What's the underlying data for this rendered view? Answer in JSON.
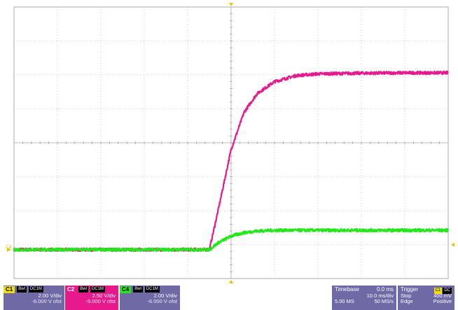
{
  "colors": {
    "grid": "#a8a8a8",
    "C1": "#f0e000",
    "C2": "#e8198c",
    "C4": "#22e81a",
    "panel": "#6f6aa6",
    "axis_marker": "#e6c600"
  },
  "chart_data": {
    "type": "line",
    "title": "",
    "xlabel": "",
    "ylabel": "",
    "grid": true,
    "divisions": {
      "x": 10,
      "y": 8
    },
    "xlim_div": [
      -5,
      5
    ],
    "ylim_div": [
      -4,
      4
    ],
    "ground_marker_label": "C4",
    "series": [
      {
        "name": "C2",
        "color": "#e8198c",
        "x_div": [
          -5,
          -0.5,
          -0.3,
          0,
          0.3,
          0.6,
          1.0,
          1.5,
          2.0,
          3.0,
          4.0,
          5.0
        ],
        "y_div": [
          -3.15,
          -3.15,
          -2.0,
          -0.2,
          0.9,
          1.45,
          1.8,
          1.98,
          2.03,
          2.05,
          2.06,
          2.06
        ]
      },
      {
        "name": "C4",
        "color": "#22e81a",
        "x_div": [
          -5,
          -0.5,
          -0.3,
          0,
          0.3,
          0.6,
          1.0,
          2.0,
          3.0,
          4.0,
          5.0
        ],
        "y_div": [
          -3.15,
          -3.15,
          -2.95,
          -2.75,
          -2.65,
          -2.6,
          -2.58,
          -2.58,
          -2.58,
          -2.58,
          -2.58
        ]
      }
    ]
  },
  "channels": [
    {
      "id": "C1",
      "tags": [
        "Bwl",
        "DC1M"
      ],
      "scale": "2.00 V/div",
      "offset": "-6.000 V ofst"
    },
    {
      "id": "C2",
      "tags": [
        "Bwl",
        "DC1M"
      ],
      "scale": "2.50 V/div",
      "offset": "-9.000 V ofst"
    },
    {
      "id": "C4",
      "tags": [
        "Bwl",
        "DC1M"
      ],
      "scale": "2.00 V/div",
      "offset": "-6.000 V ofst"
    }
  ],
  "timebase": {
    "label": "Timebase",
    "position": "0.0 ms",
    "scale": "10.0 ms/div",
    "samples": "5.00 MS",
    "rate": "50 MS/s"
  },
  "trigger": {
    "label": "Trigger",
    "source": "C1",
    "coupling": "DC",
    "mode": "Stop",
    "level": "400 mV",
    "type": "Edge",
    "slope": "Positive"
  }
}
